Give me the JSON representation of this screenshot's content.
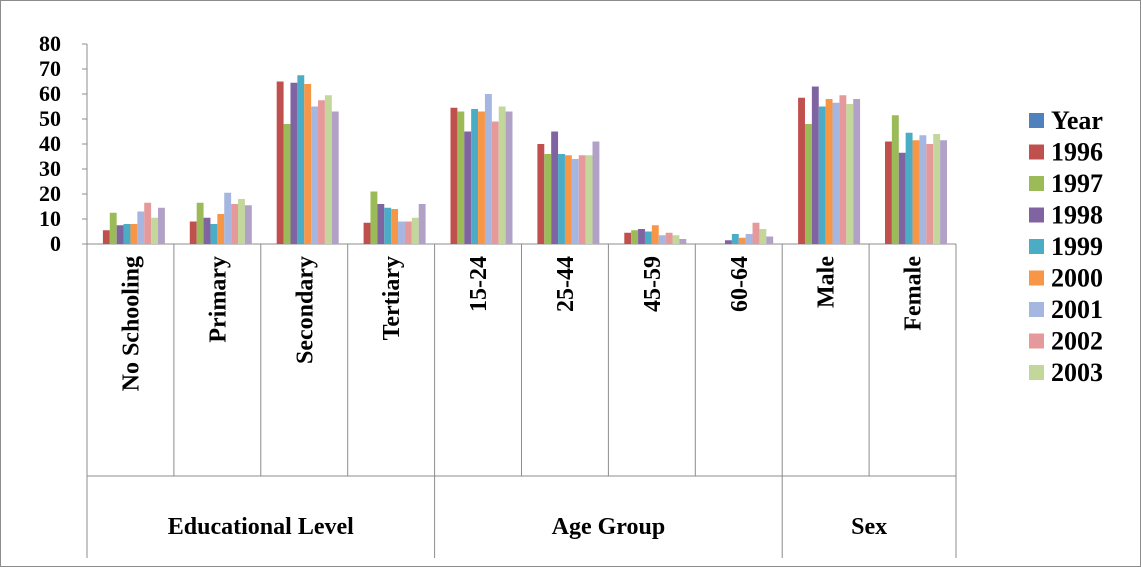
{
  "chart_data": {
    "type": "bar",
    "title": "",
    "xlabel": "",
    "ylabel": "",
    "ylim": [
      0,
      80
    ],
    "yticks": [
      0,
      10,
      20,
      30,
      40,
      50,
      60,
      70,
      80
    ],
    "grid": false,
    "legend_position": "right",
    "groups": [
      {
        "label": "Educational Level",
        "categories": [
          "No  Schooling",
          "Primary",
          "Secondary",
          "Tertiary"
        ]
      },
      {
        "label": "Age Group",
        "categories": [
          "15-24",
          "25-44",
          "45-59",
          "60-64"
        ]
      },
      {
        "label": "Sex",
        "categories": [
          "Male",
          "Female"
        ]
      }
    ],
    "categories": [
      "No  Schooling",
      "Primary",
      "Secondary",
      "Tertiary",
      "15-24",
      "25-44",
      "45-59",
      "60-64",
      "Male",
      "Female"
    ],
    "series": [
      {
        "name": "Year",
        "color": "#4F81BD",
        "values": [
          0,
          0,
          0,
          0,
          0,
          0,
          0,
          0,
          0,
          0
        ]
      },
      {
        "name": "1996",
        "color": "#C0504D",
        "values": [
          5.5,
          9,
          65,
          8.5,
          54.5,
          40,
          4.5,
          0,
          58.5,
          41
        ]
      },
      {
        "name": "1997",
        "color": "#9BBB59",
        "values": [
          12.5,
          16.5,
          48,
          21,
          53,
          36,
          5.5,
          0,
          48,
          51.5
        ]
      },
      {
        "name": "1998",
        "color": "#8064A2",
        "values": [
          7.5,
          10.5,
          64.5,
          16,
          45,
          45,
          6,
          1.5,
          63,
          36.5
        ]
      },
      {
        "name": "1999",
        "color": "#4BACC6",
        "values": [
          8,
          8,
          67.5,
          14.5,
          54,
          36,
          5,
          4,
          55,
          44.5
        ]
      },
      {
        "name": "2000",
        "color": "#F79646",
        "values": [
          8,
          12,
          64,
          14,
          53,
          35.5,
          7.5,
          2.5,
          58,
          41.5
        ]
      },
      {
        "name": "2001",
        "color": "#A5B6E0",
        "values": [
          13,
          20.5,
          55,
          9,
          60,
          34,
          3.5,
          4,
          56.5,
          43.5
        ]
      },
      {
        "name": "2002",
        "color": "#E6999B",
        "values": [
          16.5,
          16,
          57.5,
          9,
          49,
          35.5,
          4.5,
          8.5,
          59.5,
          40
        ]
      },
      {
        "name": "2003",
        "color": "#C4D79B",
        "values": [
          10.5,
          18,
          59.5,
          10.5,
          55,
          35.5,
          3.5,
          6,
          56,
          44
        ]
      },
      {
        "name": "",
        "color": "#B2A1C7",
        "values": [
          14.5,
          15.5,
          53,
          16,
          53,
          41,
          2,
          3,
          58,
          41.5
        ]
      }
    ]
  }
}
